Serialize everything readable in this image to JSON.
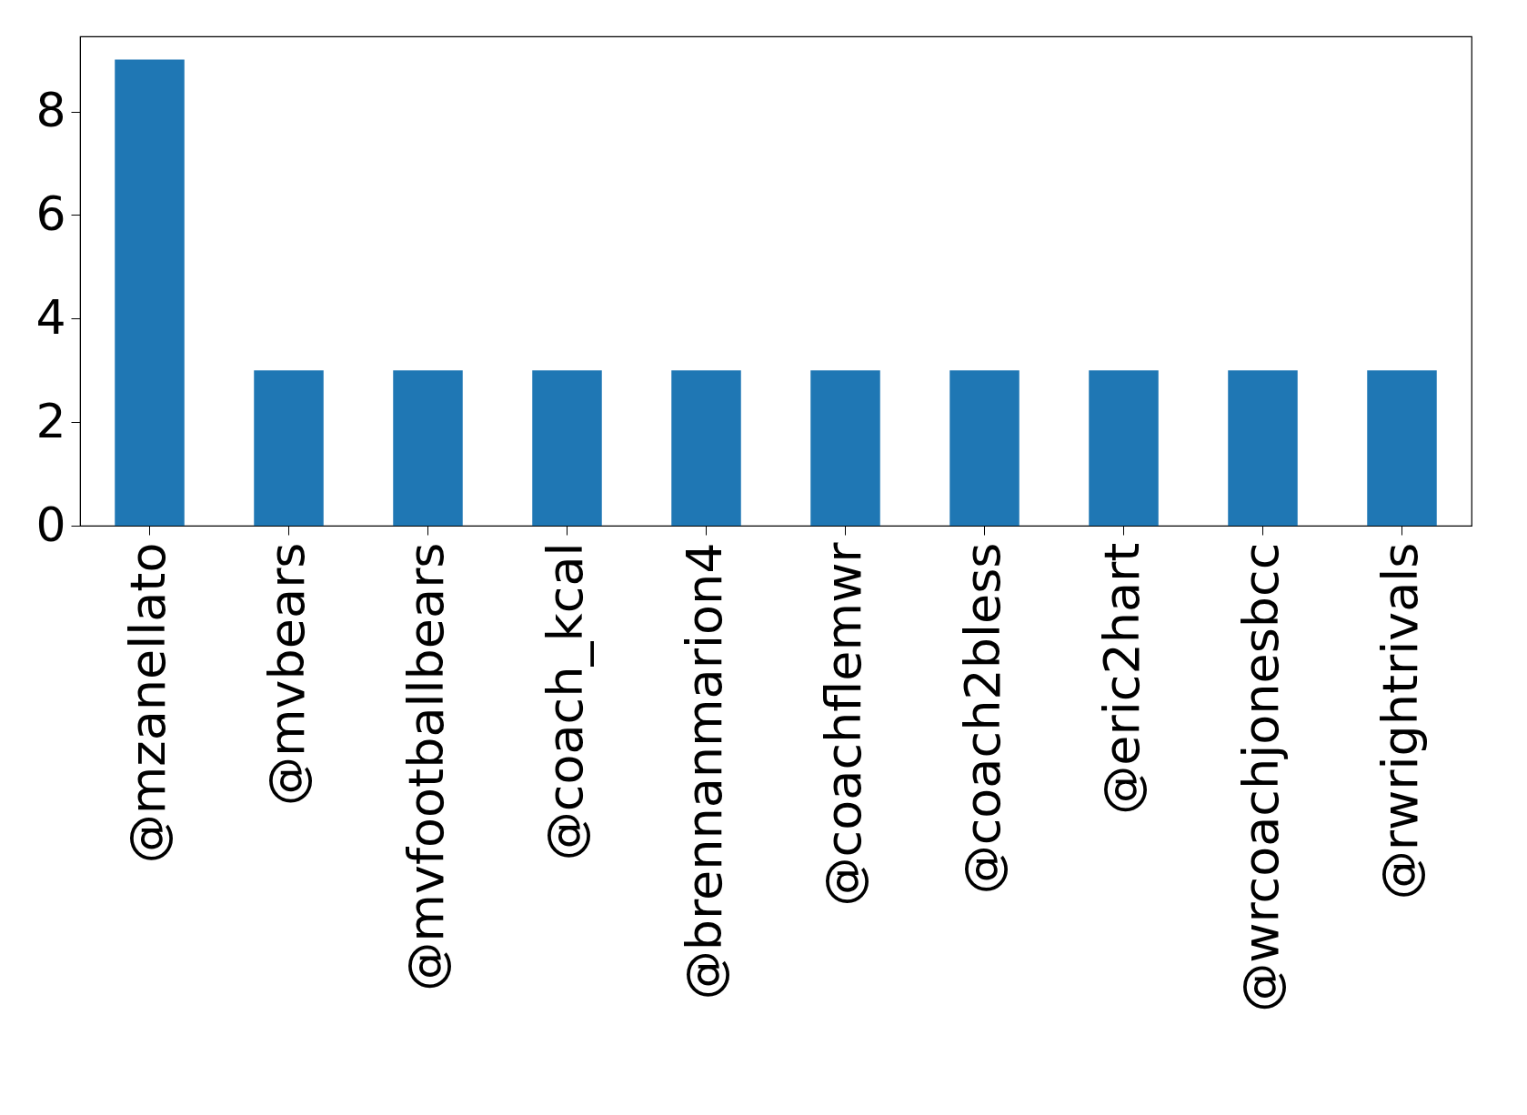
{
  "chart_data": {
    "type": "bar",
    "categories": [
      "@mzanellato",
      "@mvbears",
      "@mvfootballbears",
      "@coach_kcal",
      "@brennanmarion4",
      "@coachflemwr",
      "@coach2bless",
      "@eric2hart",
      "@wrcoachjonesbcc",
      "@rwrightrivals"
    ],
    "values": [
      9,
      3,
      3,
      3,
      3,
      3,
      3,
      3,
      3,
      3
    ],
    "color": "#1f77b4",
    "ylim": [
      0,
      9.45
    ],
    "yticks": [
      0,
      2,
      4,
      6,
      8
    ],
    "grid": false
  }
}
